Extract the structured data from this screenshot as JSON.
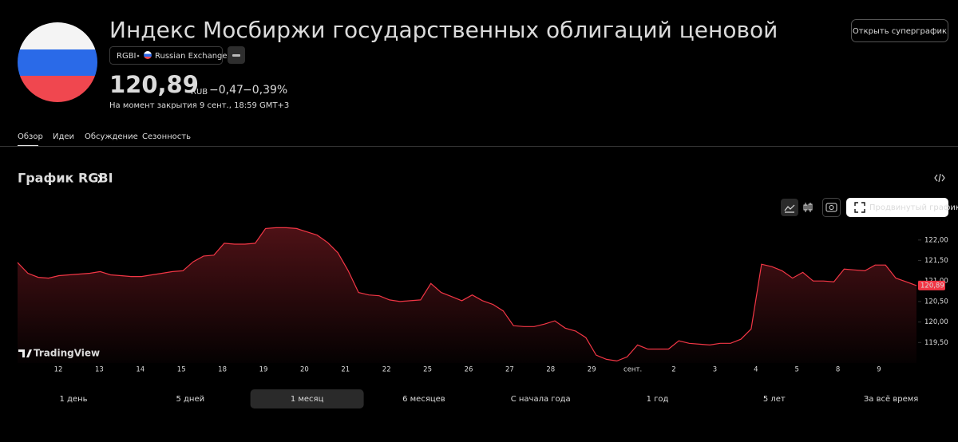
{
  "header": {
    "title": "Индекс Мосбиржи государственных облигаций ценовой",
    "ticker": "RGBI",
    "exchange": "Russian Exchange",
    "price": "120,89",
    "currency": "RUB",
    "change": "−0,47",
    "change_percent": "−0,39%",
    "timestamp": "На момент закрытия 9 сент., 18:59 GMT+3",
    "superchart_button": "Открыть суперграфик"
  },
  "tabs": [
    "Обзор",
    "Идеи",
    "Обсуждение",
    "Сезонность"
  ],
  "section_title": "График RGBI",
  "advanced_chart_button": "Продвинутый график",
  "watermark": "TradingView",
  "chart_data": {
    "type": "area",
    "color": "#f23645",
    "x_labels": [
      "12",
      "13",
      "14",
      "15",
      "18",
      "19",
      "20",
      "21",
      "22",
      "25",
      "26",
      "27",
      "28",
      "29",
      "сент.",
      "2",
      "3",
      "4",
      "5",
      "8",
      "9"
    ],
    "values": [
      121.45,
      121.19,
      121.09,
      121.07,
      121.13,
      121.15,
      121.17,
      121.19,
      121.23,
      121.15,
      121.13,
      121.11,
      121.11,
      121.15,
      121.19,
      121.23,
      121.25,
      121.47,
      121.61,
      121.63,
      121.92,
      121.9,
      121.9,
      121.92,
      122.28,
      122.3,
      122.3,
      122.28,
      122.2,
      122.12,
      121.94,
      121.69,
      121.25,
      120.72,
      120.66,
      120.64,
      120.54,
      120.5,
      120.52,
      120.54,
      120.94,
      120.72,
      120.62,
      120.52,
      120.66,
      120.52,
      120.43,
      120.27,
      119.91,
      119.89,
      119.89,
      119.95,
      120.03,
      119.85,
      119.78,
      119.62,
      119.19,
      119.09,
      119.05,
      119.15,
      119.44,
      119.34,
      119.34,
      119.34,
      119.54,
      119.48,
      119.46,
      119.44,
      119.48,
      119.48,
      119.58,
      119.83,
      121.41,
      121.35,
      121.25,
      121.07,
      121.21,
      121.0,
      121.0,
      120.98,
      121.29,
      121.27,
      121.25,
      121.39,
      121.39,
      121.07,
      120.98,
      120.89
    ],
    "ylim": [
      119,
      122.6
    ],
    "yticks": [
      {
        "value": 119.5,
        "label": "119,50"
      },
      {
        "value": 120,
        "label": "120,00"
      },
      {
        "value": 120.5,
        "label": "120,50"
      },
      {
        "value": 121,
        "label": "121,00"
      },
      {
        "value": 121.5,
        "label": "121,50"
      },
      {
        "value": 122,
        "label": "122,00"
      }
    ],
    "last_label": "120,89"
  },
  "periods": [
    "1 день",
    "5 дней",
    "1 месяц",
    "6 месяцев",
    "С начала года",
    "1 год",
    "5 лет",
    "За всё время"
  ],
  "active_period": 2
}
